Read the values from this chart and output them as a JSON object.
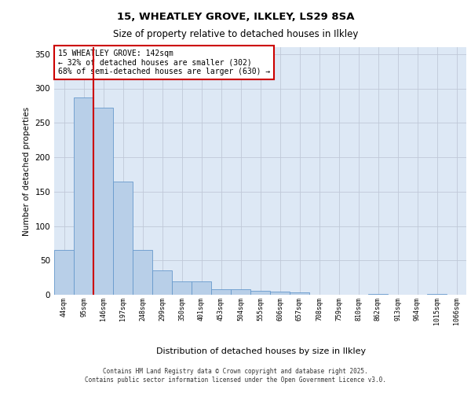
{
  "title1": "15, WHEATLEY GROVE, ILKLEY, LS29 8SA",
  "title2": "Size of property relative to detached houses in Ilkley",
  "xlabel": "Distribution of detached houses by size in Ilkley",
  "ylabel": "Number of detached properties",
  "categories": [
    "44sqm",
    "95sqm",
    "146sqm",
    "197sqm",
    "248sqm",
    "299sqm",
    "350sqm",
    "401sqm",
    "453sqm",
    "504sqm",
    "555sqm",
    "606sqm",
    "657sqm",
    "708sqm",
    "759sqm",
    "810sqm",
    "862sqm",
    "913sqm",
    "964sqm",
    "1015sqm",
    "1066sqm"
  ],
  "bar_heights": [
    65,
    287,
    272,
    165,
    65,
    35,
    19,
    19,
    8,
    8,
    6,
    5,
    4,
    0,
    0,
    0,
    1,
    0,
    0,
    1,
    0
  ],
  "bar_color": "#b8cfe8",
  "bar_edgecolor": "#6699cc",
  "vline_x": 2.0,
  "marker_label1": "15 WHEATLEY GROVE: 142sqm",
  "marker_label2": "← 32% of detached houses are smaller (302)",
  "marker_label3": "68% of semi-detached houses are larger (630) →",
  "annotation_box_color": "#ffffff",
  "annotation_box_edgecolor": "#cc0000",
  "vline_color": "#cc0000",
  "ylim": [
    0,
    360
  ],
  "yticks": [
    0,
    50,
    100,
    150,
    200,
    250,
    300,
    350
  ],
  "bg_color": "#dde8f5",
  "footer1": "Contains HM Land Registry data © Crown copyright and database right 2025.",
  "footer2": "Contains public sector information licensed under the Open Government Licence v3.0."
}
